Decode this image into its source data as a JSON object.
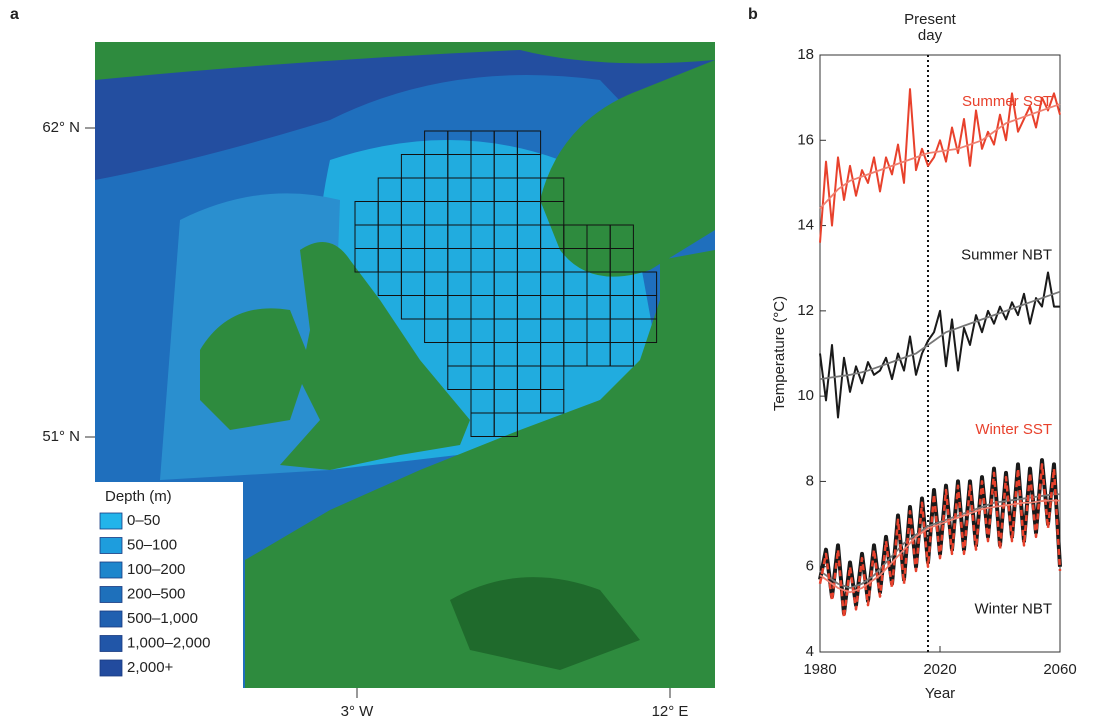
{
  "map": {
    "panel_label": "a",
    "lat_labels": [
      "62° N",
      "51° N"
    ],
    "lon_labels": [
      "3° W",
      "12° E"
    ],
    "legend_title": "Depth (m)",
    "legend_items": [
      {
        "label": "0–50",
        "color": "#22b4ea"
      },
      {
        "label": "50–100",
        "color": "#1e9ddd"
      },
      {
        "label": "100–200",
        "color": "#1d86cc"
      },
      {
        "label": "200–500",
        "color": "#1e70bb"
      },
      {
        "label": "500–1,000",
        "color": "#2060b0"
      },
      {
        "label": "1,000–2,000",
        "color": "#2156a8"
      },
      {
        "label": "2,000+",
        "color": "#224b9e"
      }
    ]
  },
  "chart_data": {
    "type": "line",
    "panel_label": "b",
    "x_label": "Year",
    "y_label": "Temperature (°C)",
    "annotation": [
      "Present",
      "day"
    ],
    "present_day_x": 2016,
    "xlim": [
      1980,
      2060
    ],
    "xticks": [
      1980,
      2020,
      2060
    ],
    "ylim": [
      4,
      18
    ],
    "yticks": [
      4,
      6,
      8,
      10,
      12,
      14,
      16,
      18
    ],
    "x": [
      1980,
      1982,
      1984,
      1986,
      1988,
      1990,
      1992,
      1994,
      1996,
      1998,
      2000,
      2002,
      2004,
      2006,
      2008,
      2010,
      2012,
      2014,
      2016,
      2018,
      2020,
      2022,
      2024,
      2026,
      2028,
      2030,
      2032,
      2034,
      2036,
      2038,
      2040,
      2042,
      2044,
      2046,
      2048,
      2050,
      2052,
      2054,
      2056,
      2058,
      2060
    ],
    "series": [
      {
        "name": "Summer SST",
        "color": "#e8412c",
        "trend_color": "#f08070",
        "label_y": 16.9,
        "values": [
          13.6,
          15.5,
          14.0,
          15.6,
          14.6,
          15.4,
          14.7,
          15.3,
          15.0,
          15.6,
          14.8,
          15.6,
          15.2,
          15.9,
          15.0,
          17.2,
          15.3,
          15.8,
          15.4,
          15.6,
          16.0,
          15.5,
          16.3,
          15.7,
          16.5,
          15.4,
          16.7,
          15.8,
          16.2,
          15.9,
          16.6,
          16.0,
          17.1,
          16.2,
          16.5,
          16.8,
          16.3,
          17.0,
          16.7,
          17.1,
          16.6
        ],
        "trend": [
          14.4,
          14.55,
          14.7,
          14.85,
          14.95,
          15.05,
          15.1,
          15.15,
          15.2,
          15.25,
          15.3,
          15.35,
          15.4,
          15.45,
          15.5,
          15.55,
          15.6,
          15.65,
          15.7,
          15.72,
          15.74,
          15.76,
          15.78,
          15.8,
          15.85,
          15.9,
          15.95,
          16.0,
          16.1,
          16.2,
          16.3,
          16.4,
          16.45,
          16.5,
          16.55,
          16.6,
          16.65,
          16.7,
          16.75,
          16.8,
          16.85
        ]
      },
      {
        "name": "Summer NBT",
        "color": "#1a1a1a",
        "trend_color": "#777777",
        "label_y": 13.3,
        "values": [
          11.0,
          9.9,
          11.2,
          9.5,
          10.9,
          10.1,
          10.7,
          10.3,
          10.8,
          10.5,
          10.6,
          10.9,
          10.4,
          11.0,
          10.6,
          11.4,
          10.5,
          11.0,
          11.3,
          11.5,
          12.0,
          10.7,
          11.8,
          10.6,
          11.6,
          11.2,
          11.9,
          11.5,
          12.0,
          11.7,
          12.1,
          11.8,
          12.2,
          11.9,
          12.4,
          11.7,
          12.3,
          12.1,
          12.9,
          12.1,
          12.1
        ],
        "trend": [
          10.4,
          10.42,
          10.44,
          10.46,
          10.48,
          10.5,
          10.53,
          10.56,
          10.6,
          10.65,
          10.7,
          10.75,
          10.8,
          10.85,
          10.9,
          10.95,
          11.0,
          11.1,
          11.2,
          11.3,
          11.4,
          11.5,
          11.55,
          11.6,
          11.65,
          11.7,
          11.75,
          11.8,
          11.85,
          11.9,
          11.95,
          12.0,
          12.05,
          12.1,
          12.15,
          12.2,
          12.25,
          12.3,
          12.35,
          12.4,
          12.45
        ]
      },
      {
        "name": "Winter NBT",
        "color": "#1a1a1a",
        "trend_color": "#777777",
        "label_y": 5.0,
        "values": [
          5.7,
          6.4,
          5.3,
          6.5,
          4.9,
          6.1,
          5.1,
          6.3,
          5.2,
          6.5,
          5.4,
          6.7,
          5.6,
          7.2,
          5.7,
          7.4,
          6.0,
          7.6,
          6.1,
          7.8,
          6.3,
          7.9,
          6.4,
          8.0,
          6.4,
          8.0,
          6.5,
          8.1,
          6.7,
          8.3,
          6.5,
          8.2,
          6.7,
          8.4,
          6.6,
          8.3,
          6.8,
          8.5,
          7.0,
          8.4,
          6.0
        ],
        "trend": [
          5.9,
          5.8,
          5.7,
          5.6,
          5.55,
          5.5,
          5.55,
          5.6,
          5.7,
          5.8,
          5.95,
          6.1,
          6.25,
          6.4,
          6.55,
          6.65,
          6.75,
          6.85,
          6.95,
          7.0,
          7.05,
          7.1,
          7.15,
          7.2,
          7.25,
          7.3,
          7.35,
          7.4,
          7.45,
          7.5,
          7.52,
          7.54,
          7.56,
          7.58,
          7.6,
          7.62,
          7.64,
          7.66,
          7.68,
          7.7,
          7.7
        ]
      },
      {
        "name": "Winter SST",
        "color": "#e8412c",
        "trend_color": "#f08070",
        "dashed": true,
        "label_y": 9.2,
        "values": [
          5.6,
          6.3,
          5.2,
          6.4,
          4.8,
          6.0,
          5.0,
          6.2,
          5.1,
          6.4,
          5.3,
          6.6,
          5.5,
          7.1,
          5.6,
          7.3,
          5.9,
          7.5,
          6.0,
          7.7,
          6.2,
          7.8,
          6.3,
          7.9,
          6.3,
          7.9,
          6.4,
          8.0,
          6.6,
          8.2,
          6.4,
          8.1,
          6.6,
          8.3,
          6.5,
          8.2,
          6.7,
          8.4,
          6.9,
          8.3,
          5.9
        ],
        "trend": [
          5.8,
          5.7,
          5.6,
          5.5,
          5.45,
          5.4,
          5.45,
          5.5,
          5.6,
          5.7,
          5.8,
          5.95,
          6.1,
          6.25,
          6.4,
          6.55,
          6.7,
          6.8,
          6.9,
          6.95,
          7.0,
          7.05,
          7.1,
          7.15,
          7.2,
          7.25,
          7.3,
          7.35,
          7.38,
          7.4,
          7.42,
          7.44,
          7.46,
          7.48,
          7.5,
          7.5,
          7.52,
          7.54,
          7.55,
          7.55,
          7.55
        ]
      }
    ]
  }
}
